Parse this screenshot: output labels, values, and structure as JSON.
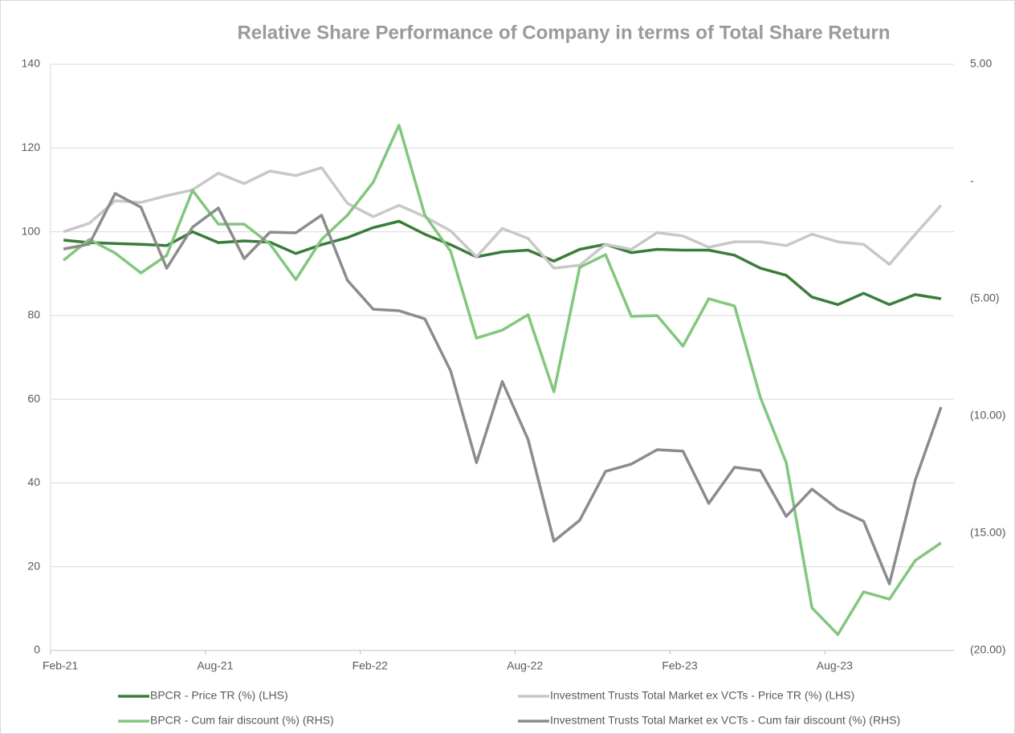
{
  "chart_data": {
    "type": "line",
    "title": "Relative Share Performance of Company in terms of Total Share Return",
    "categories": [
      "Feb-21",
      null,
      null,
      null,
      null,
      null,
      "Aug-21",
      null,
      null,
      null,
      null,
      null,
      "Feb-22",
      null,
      null,
      null,
      null,
      null,
      "Aug-22",
      null,
      null,
      null,
      null,
      null,
      "Feb-23",
      null,
      null,
      null,
      null,
      null,
      "Aug-23",
      null,
      null,
      null,
      null
    ],
    "ylim": [
      0,
      140
    ],
    "yticks": [
      0,
      20,
      40,
      60,
      80,
      100,
      120,
      140
    ],
    "y2lim": [
      -20,
      5
    ],
    "y2ticks": [
      {
        "value": -20,
        "label": "(20.00)"
      },
      {
        "value": -15,
        "label": "(15.00)"
      },
      {
        "value": -10,
        "label": "(10.00)"
      },
      {
        "value": -5,
        "label": "(5.00)"
      },
      {
        "value": 0,
        "label": "-"
      },
      {
        "value": 5,
        "label": "5.00"
      }
    ],
    "grid": true,
    "series": [
      {
        "name": "BPCR - Price TR (%) (LHS)",
        "color": "#3a7d3a",
        "values": [
          98,
          97.4,
          97.2,
          97,
          96.7,
          100,
          97.4,
          97.8,
          97.5,
          94.8,
          96.9,
          98.6,
          101,
          102.5,
          99.4,
          96.9,
          94,
          95.2,
          95.6,
          93,
          95.8,
          97,
          95,
          95.8,
          95.6,
          95.6,
          94.4,
          91.3,
          89.6,
          84.4,
          82.6,
          85.3,
          82.6,
          85,
          84
        ]
      },
      {
        "name": "Investment Trusts Total Market ex VCTs - Price TR (%) (LHS)",
        "color": "#c8c8c8",
        "values": [
          100,
          102,
          107.4,
          107,
          108.6,
          110,
          114,
          111.5,
          114.5,
          113.4,
          115.3,
          106.8,
          103.6,
          106.3,
          103.6,
          100.2,
          94,
          100.8,
          98.4,
          91.3,
          92,
          97,
          95.8,
          99.8,
          99,
          96.3,
          97.6,
          97.6,
          96.7,
          99.4,
          97.6,
          97,
          92.2,
          99.4,
          106.3
        ]
      },
      {
        "name": "BPCR  - Cum fair discount (%) (RHS)",
        "color": "#82c77d",
        "axis": "y2",
        "values": [
          -3.36,
          -2.47,
          -3.05,
          -3.9,
          -3.15,
          -0.38,
          -1.82,
          -1.82,
          -2.67,
          -4.18,
          -2.47,
          -1.44,
          -0.03,
          2.4,
          -1.44,
          -2.98,
          -6.68,
          -6.34,
          -5.68,
          -8.97,
          -3.66,
          -3.12,
          -5.75,
          -5.72,
          -7.02,
          -5.0,
          -5.31,
          -9.21,
          -11.99,
          -18.18,
          -19.32,
          -17.5,
          -17.81,
          -16.16,
          -15.41
        ]
      },
      {
        "name": "Investment Trusts Total Market ex VCTs - Cum fair discount (%) (RHS)",
        "color": "#8c8c8c",
        "axis": "y2",
        "values": [
          -2.88,
          -2.67,
          -0.51,
          -1.1,
          -3.7,
          -1.95,
          -1.13,
          -3.29,
          -2.16,
          -2.19,
          -1.44,
          -4.21,
          -5.45,
          -5.51,
          -5.86,
          -8.08,
          -11.99,
          -8.53,
          -11.0,
          -15.34,
          -14.45,
          -12.36,
          -12.05,
          -11.44,
          -11.5,
          -13.73,
          -12.19,
          -12.33,
          -14.28,
          -13.12,
          -13.97,
          -14.49,
          -17.16,
          -12.74,
          -9.62
        ]
      }
    ]
  }
}
